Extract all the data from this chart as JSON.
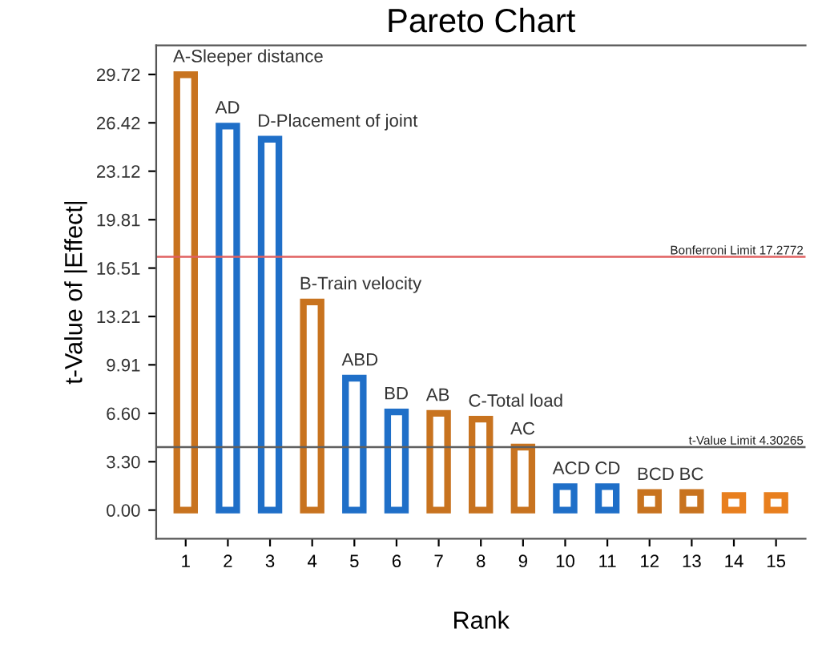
{
  "chart_data": {
    "type": "bar",
    "title": "Pareto Chart",
    "xlabel": "Rank",
    "ylabel": "t-Value of |Effect|",
    "categories": [
      "1",
      "2",
      "3",
      "4",
      "5",
      "6",
      "7",
      "8",
      "9",
      "10",
      "11",
      "12",
      "13",
      "14",
      "15"
    ],
    "values": [
      29.7,
      26.2,
      25.3,
      14.2,
      9.0,
      6.7,
      6.6,
      6.2,
      4.3,
      1.6,
      1.6,
      1.2,
      1.2,
      1.0,
      1.0
    ],
    "colors": [
      "#c8731f",
      "#1f6fc8",
      "#1f6fc8",
      "#c8731f",
      "#1f6fc8",
      "#1f6fc8",
      "#c8731f",
      "#c8731f",
      "#c8731f",
      "#1f6fc8",
      "#1f6fc8",
      "#c8731f",
      "#c8731f",
      "#e87f1e",
      "#e87f1e"
    ],
    "ylim": [
      -1.95,
      31.7
    ],
    "yticks": [
      {
        "value": 0,
        "label": "0.00"
      },
      {
        "value": 3.3,
        "label": "3.30"
      },
      {
        "value": 6.6,
        "label": "6.60"
      },
      {
        "value": 9.91,
        "label": "9.91"
      },
      {
        "value": 13.21,
        "label": "13.21"
      },
      {
        "value": 16.51,
        "label": "16.51"
      },
      {
        "value": 19.81,
        "label": "19.81"
      },
      {
        "value": 23.12,
        "label": "23.12"
      },
      {
        "value": 26.42,
        "label": "26.42"
      },
      {
        "value": 29.72,
        "label": "29.72"
      }
    ],
    "ref_lines": [
      {
        "axis": "y",
        "value": 17.2772,
        "label": "Bonferroni Limit 17.2772",
        "color": "#e06060"
      },
      {
        "axis": "y",
        "value": 4.30265,
        "label": "t-Value Limit 4.30265",
        "color": "#606060"
      }
    ],
    "annotations": [
      {
        "text": "A-Sleeper distance",
        "x": "1",
        "y": 29.7
      },
      {
        "text": "AD",
        "x": "2",
        "y": 26.2
      },
      {
        "text": "D-Placement of joint",
        "x": "3",
        "y": 25.3
      },
      {
        "text": "B-Train velocity",
        "x": "4",
        "y": 14.2
      },
      {
        "text": "ABD",
        "x": "5",
        "y": 9.0
      },
      {
        "text": "BD",
        "x": "6",
        "y": 6.7
      },
      {
        "text": "AB",
        "x": "7",
        "y": 6.6
      },
      {
        "text": "C-Total load",
        "x": "8",
        "y": 6.2
      },
      {
        "text": "AC",
        "x": "9",
        "y": 4.3
      },
      {
        "text": "ACD",
        "x": "10",
        "y": 1.6
      },
      {
        "text": "CD",
        "x": "11",
        "y": 1.6
      },
      {
        "text": "BCD",
        "x": "12",
        "y": 1.2
      },
      {
        "text": "BC",
        "x": "13",
        "y": 1.2
      }
    ],
    "grid": false
  }
}
